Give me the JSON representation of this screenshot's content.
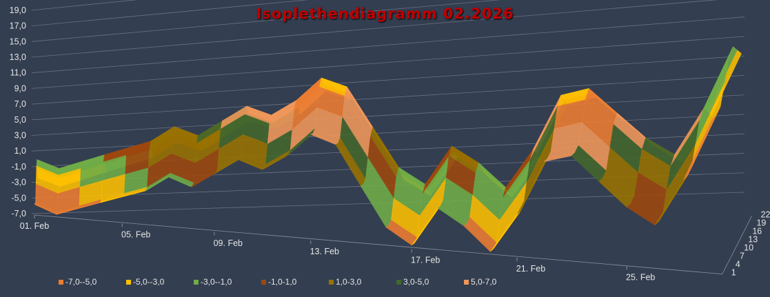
{
  "chart_data": {
    "type": "surface",
    "title": "Isoplethendiagramm 02.2026",
    "x_tick_labels": [
      "01. Feb",
      "05. Feb",
      "09. Feb",
      "13. Feb",
      "17. Feb",
      "21. Feb",
      "25. Feb"
    ],
    "depth_tick_labels": [
      "1",
      "4",
      "7",
      "10",
      "13",
      "16",
      "19",
      "22"
    ],
    "z_tick_labels": [
      "-7,0",
      "-5,0",
      "-3,0",
      "-1,0",
      "1,0",
      "3,0",
      "5,0",
      "7,0",
      "9,0",
      "11,0",
      "13,0",
      "15,0",
      "17,0",
      "19,0"
    ],
    "z_range": [
      -7,
      19
    ],
    "days": 28,
    "hours": [
      1,
      4,
      7,
      10,
      13,
      16,
      19,
      22
    ],
    "values": [
      [
        -5.5,
        -6,
        -6,
        -4,
        -2,
        -1.5,
        -3,
        -4.5
      ],
      [
        -6.5,
        -7,
        -7,
        -5,
        -3,
        -2.5,
        -4,
        -5.5
      ],
      [
        -5.5,
        -6,
        -6,
        -4,
        -2,
        -1.5,
        -3,
        -4.5
      ],
      [
        -4.5,
        -5,
        -5,
        -3,
        -1,
        -0.5,
        -2,
        -3.5
      ],
      [
        -3.5,
        -4,
        -4,
        -2,
        0,
        0.5,
        -1,
        -2.5
      ],
      [
        -2.5,
        -3,
        -3,
        -1,
        1,
        1.5,
        0,
        -1.5
      ],
      [
        -0.5,
        -1,
        -1,
        1,
        3,
        3.5,
        2,
        0.5
      ],
      [
        -1.5,
        -2,
        -2,
        0,
        2,
        2.5,
        1,
        -0.5
      ],
      [
        0.5,
        0,
        0,
        2,
        4,
        4.5,
        3,
        1.5
      ],
      [
        2.5,
        2,
        2,
        4,
        6,
        6.5,
        5,
        3.5
      ],
      [
        1.5,
        1,
        1,
        3,
        5,
        5.5,
        4,
        2.5
      ],
      [
        3.5,
        3,
        3,
        5,
        7,
        7.5,
        6,
        4.5
      ],
      [
        6.5,
        6,
        6,
        8,
        10,
        10.5,
        9,
        7.5
      ],
      [
        5.5,
        5,
        5,
        7,
        9,
        9.5,
        8,
        6.5
      ],
      [
        0.5,
        0,
        0,
        2,
        4,
        4.5,
        3,
        1.5
      ],
      [
        -4.5,
        -5,
        -5,
        -3,
        -1,
        -0.5,
        -2,
        -3.5
      ],
      [
        -6.5,
        -7,
        -7,
        -5,
        -3,
        -2.5,
        -4,
        -5.5
      ],
      [
        -1.5,
        -2,
        -2,
        0,
        2,
        2.5,
        1,
        -0.5
      ],
      [
        -3.5,
        -4,
        -4,
        -2,
        0,
        0.5,
        -1,
        -2.5
      ],
      [
        -6.5,
        -7,
        -7,
        -5,
        -3,
        -2.5,
        -4,
        -5.5
      ],
      [
        -1.5,
        -2,
        -2,
        0,
        2,
        2.5,
        1,
        -0.5
      ],
      [
        5.5,
        5,
        5,
        7,
        9,
        9.5,
        8,
        6.5
      ],
      [
        6.5,
        6,
        6,
        8,
        10,
        10.5,
        9,
        7.5
      ],
      [
        3.5,
        3,
        3,
        5,
        7,
        7.5,
        6,
        4.5
      ],
      [
        0.5,
        0,
        0,
        2,
        4,
        4.5,
        3,
        1.5
      ],
      [
        -1.5,
        -2,
        -2,
        0,
        2,
        2.5,
        1,
        -0.5
      ],
      [
        4.5,
        4,
        4,
        6,
        8,
        8.5,
        7,
        5.5
      ],
      [
        12.5,
        12,
        12,
        14,
        16,
        16.5,
        15,
        13.5
      ]
    ],
    "legend": [
      {
        "label": "-7,0--5,0",
        "color": "#ed7d31"
      },
      {
        "label": "-5,0--3,0",
        "color": "#ffc000"
      },
      {
        "label": "-3,0--1,0",
        "color": "#70ad47"
      },
      {
        "label": "-1,0-1,0",
        "color": "#9e480e"
      },
      {
        "label": "1,0-3,0",
        "color": "#997300"
      },
      {
        "label": "3,0-5,0",
        "color": "#43682b"
      },
      {
        "label": "5,0-7,0",
        "color": "#f1975a"
      }
    ],
    "legend_position": "bottom",
    "grid": true
  }
}
